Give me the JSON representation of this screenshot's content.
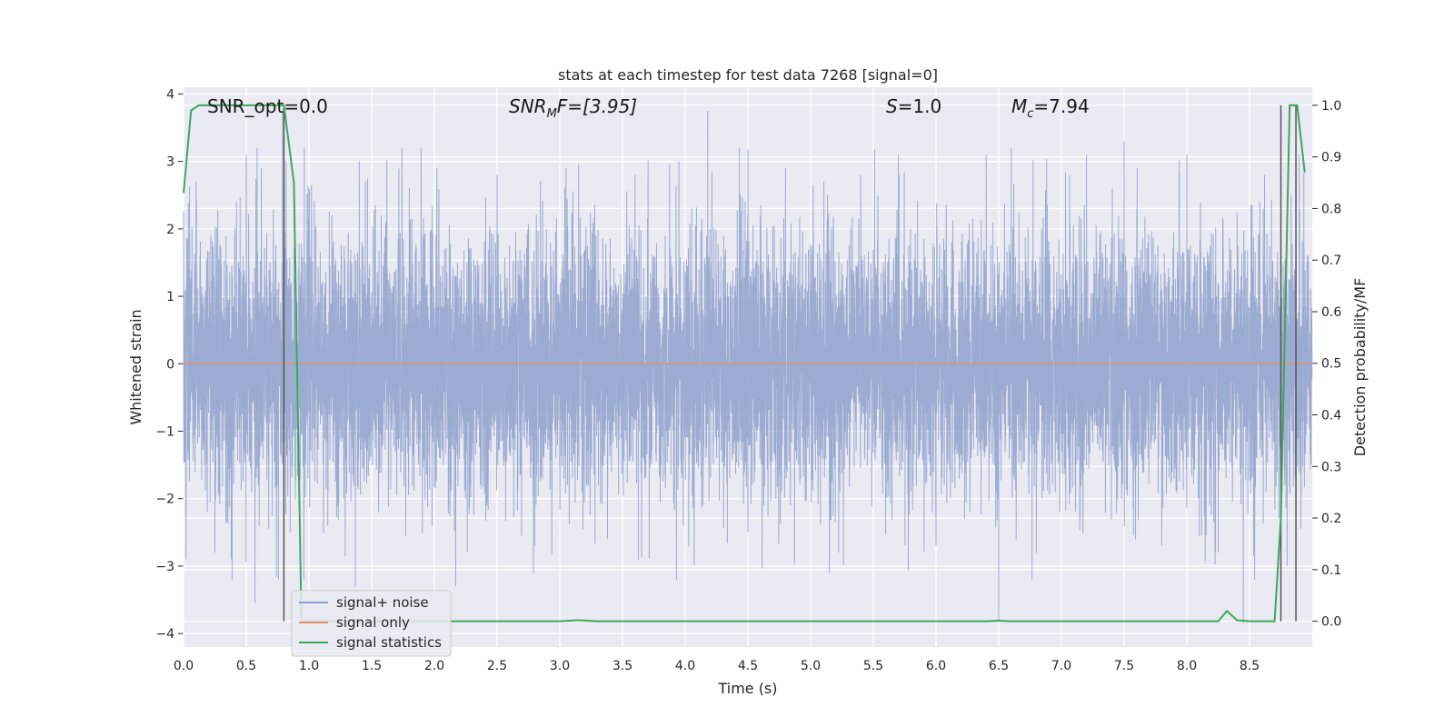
{
  "chart_data": {
    "type": "line",
    "title": "stats at each timestep for test data 7268 [signal=0]",
    "xlabel": "Time (s)",
    "ylabel": "Whitened strain",
    "y2label": "Detection probability/MF",
    "xlim": [
      0,
      9
    ],
    "ylim": [
      -4.2,
      4.1
    ],
    "y2lim": [
      -0.05,
      1.035
    ],
    "xticks": [
      "0.0",
      "0.5",
      "1.0",
      "1.5",
      "2.0",
      "2.5",
      "3.0",
      "3.5",
      "4.0",
      "4.5",
      "5.0",
      "5.5",
      "6.0",
      "6.5",
      "7.0",
      "7.5",
      "8.0",
      "8.5"
    ],
    "yticks": [
      "4",
      "3",
      "2",
      "1",
      "0",
      "−1",
      "−2",
      "−3",
      "−4"
    ],
    "y2ticks": [
      "1.0",
      "0.9",
      "0.8",
      "0.7",
      "0.6",
      "0.5",
      "0.4",
      "0.3",
      "0.2",
      "0.1",
      "0.0"
    ],
    "grid": true,
    "legend_position": "lower-left",
    "annotations": {
      "snr_opt": "SNR_opt=0.0",
      "snr_mf_main": "SNR",
      "snr_mf_sub": "M",
      "snr_mf_rest": "F=[3.95]",
      "s_main": "S",
      "s_rest": "=1.0",
      "mc_main": "M",
      "mc_sub": "c",
      "mc_rest": "=7.94"
    },
    "series": [
      {
        "name": "signal+ noise",
        "color": "#8da0cb",
        "axis": "left",
        "noise_std": 0.95,
        "spikes": [
          [
            0.02,
            -2.9
          ],
          [
            0.1,
            2.7
          ],
          [
            0.25,
            -2.8
          ],
          [
            0.38,
            -2.9
          ],
          [
            0.5,
            3.1
          ],
          [
            0.57,
            -3.55
          ],
          [
            0.62,
            2.9
          ],
          [
            0.79,
            3.75
          ],
          [
            0.85,
            -2.5
          ],
          [
            1.02,
            2.65
          ],
          [
            1.15,
            -2.4
          ],
          [
            1.37,
            -3.3
          ],
          [
            1.45,
            2.7
          ],
          [
            1.8,
            2.6
          ],
          [
            2.02,
            2.9
          ],
          [
            2.17,
            -3.3
          ],
          [
            2.5,
            2.8
          ],
          [
            2.8,
            -2.7
          ],
          [
            3.05,
            2.9
          ],
          [
            3.38,
            -2.6
          ],
          [
            3.6,
            2.8
          ],
          [
            3.95,
            3.0
          ],
          [
            4.18,
            3.75
          ],
          [
            4.5,
            -2.5
          ],
          [
            4.8,
            2.9
          ],
          [
            5.15,
            -3.1
          ],
          [
            5.4,
            2.8
          ],
          [
            5.7,
            3.1
          ],
          [
            6.0,
            -2.7
          ],
          [
            6.4,
            3.1
          ],
          [
            6.5,
            -3.8
          ],
          [
            6.6,
            3.2
          ],
          [
            6.8,
            -2.8
          ],
          [
            7.2,
            3.1
          ],
          [
            7.5,
            3.3
          ],
          [
            7.8,
            -2.7
          ],
          [
            8.0,
            3.1
          ],
          [
            8.25,
            -2.8
          ],
          [
            8.45,
            -3.85
          ],
          [
            8.62,
            2.8
          ],
          [
            8.8,
            -3.0
          ],
          [
            8.9,
            2.3
          ]
        ]
      },
      {
        "name": "signal only",
        "color": "#e0916f",
        "axis": "left",
        "x": [
          0,
          9
        ],
        "y": [
          0,
          0
        ]
      },
      {
        "name": "signal statistics",
        "color": "#3fa65e",
        "axis": "right",
        "x": [
          0,
          0.06,
          0.12,
          0.3,
          0.5,
          0.8,
          0.88,
          0.94,
          1.0,
          3.0,
          3.15,
          3.3,
          6.4,
          6.5,
          6.6,
          8.25,
          8.32,
          8.4,
          8.5,
          8.7,
          8.75,
          8.82,
          8.88,
          8.94
        ],
        "y": [
          0.83,
          0.99,
          1.0,
          1.0,
          1.0,
          1.0,
          0.85,
          0.0,
          0.0,
          0.0,
          0.002,
          0.0,
          0.0,
          0.001,
          0.0,
          0.0,
          0.02,
          0.002,
          0.0,
          0.0,
          0.2,
          1.0,
          1.0,
          0.87
        ]
      }
    ],
    "vertical_lines": [
      0.8,
      8.75,
      8.87
    ]
  }
}
